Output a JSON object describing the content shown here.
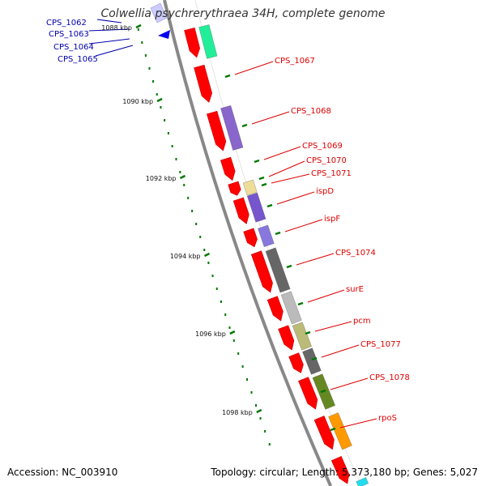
{
  "title": "Colwellia psychrerythraea 34H, complete genome",
  "footer": {
    "accession": "Accession: NC_003910",
    "topology": "Topology: circular; Length: 5,373,180 bp; Genes: 5,027"
  },
  "colors": {
    "backbone": "#888888",
    "cds": "#ff0000",
    "leftLabel": "#0000aa",
    "rightLabel": "#dd0000",
    "tick": "#007700"
  },
  "scale_labels": [
    "1088 kbp",
    "1090 kbp",
    "1092 kbp",
    "1094 kbp",
    "1096 kbp",
    "1098 kbp"
  ],
  "left_labels": [
    "CPS_1062",
    "CPS_1063",
    "CPS_1064",
    "CPS_1065"
  ],
  "right_labels": [
    "CPS_1067",
    "CPS_1068",
    "CPS_1069",
    "CPS_1070",
    "CPS_1071",
    "ispD",
    "ispF",
    "CPS_1074",
    "surE",
    "pcm",
    "CPS_1077",
    "CPS_1078",
    "rpoS"
  ],
  "feature_colors": [
    "#22ee99",
    "#8866cc",
    "#eedd99",
    "#7755cc",
    "#8877dd",
    "#666666",
    "#bbbbbb",
    "#bbbb77",
    "#666666",
    "#668822",
    "#ff9900",
    "#22ddee"
  ]
}
